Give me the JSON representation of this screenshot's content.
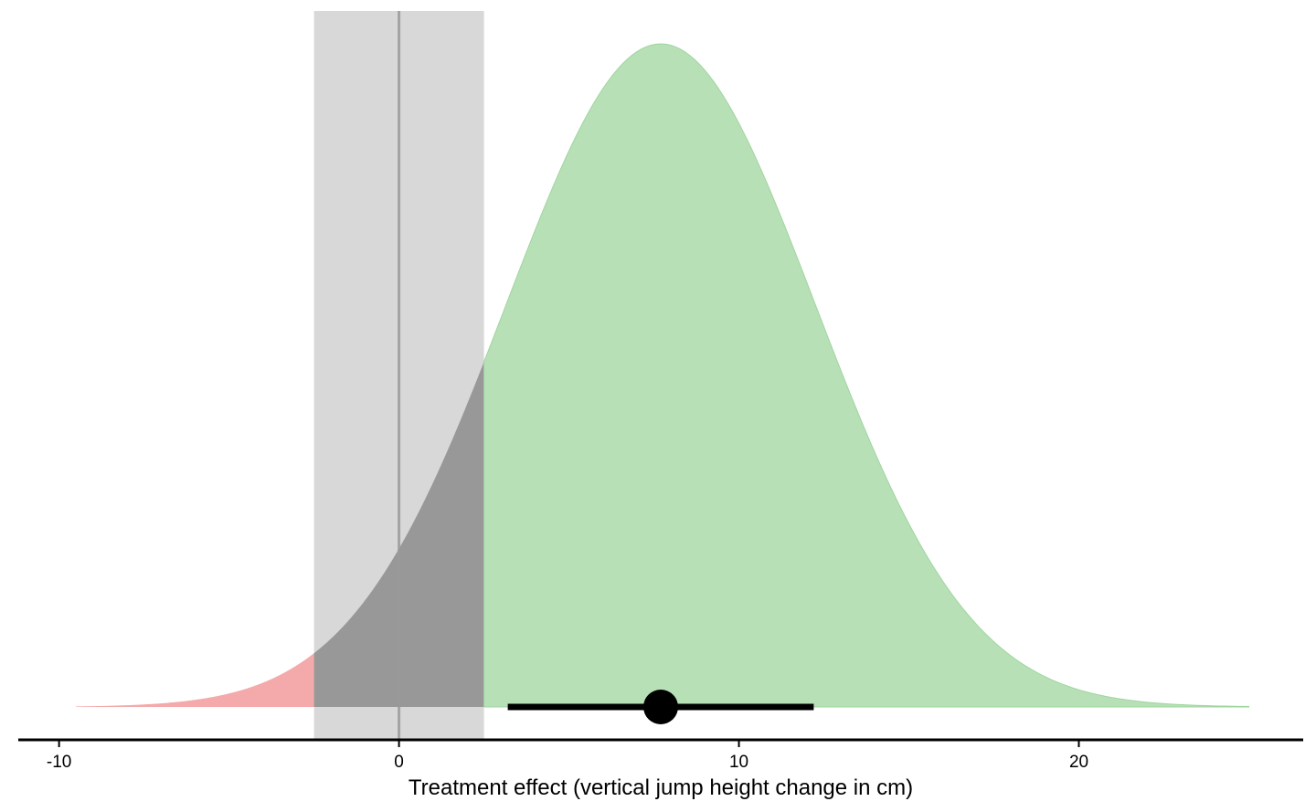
{
  "chart_data": {
    "type": "area",
    "title": "",
    "xlabel": "Treatment effect (vertical jump height change in cm)",
    "ylabel": "",
    "xlim": [
      -11.2,
      26.6
    ],
    "x_ticks": [
      -10,
      0,
      10,
      20
    ],
    "x_tick_labels": [
      "-10",
      "0",
      "10",
      "20"
    ],
    "grid": false,
    "legend": "none",
    "distribution": {
      "shape": "normal",
      "mean": 7.7,
      "sd": 4.55,
      "x_range": [
        -9.5,
        25
      ]
    },
    "rope": {
      "lower": -2.5,
      "upper": 2.5
    },
    "reference_line_x": 0,
    "regions": [
      {
        "from": -9.5,
        "to": -2.5,
        "color": "#f4a9ab"
      },
      {
        "from": -2.5,
        "to": 2.5,
        "color": "#989898"
      },
      {
        "from": 2.5,
        "to": 25,
        "color": "#b7e0b7"
      }
    ],
    "point_estimate": 7.7,
    "interval": [
      3.2,
      12.2
    ],
    "colors": {
      "harm": "#f4a9ab",
      "trivial": "#989898",
      "benefit": "#b7e0b7",
      "benefit_outline": "#9fd59f",
      "rope_band": "#d8d8d8",
      "zero_line": "#9a9a9a",
      "estimate": "#000000"
    }
  }
}
